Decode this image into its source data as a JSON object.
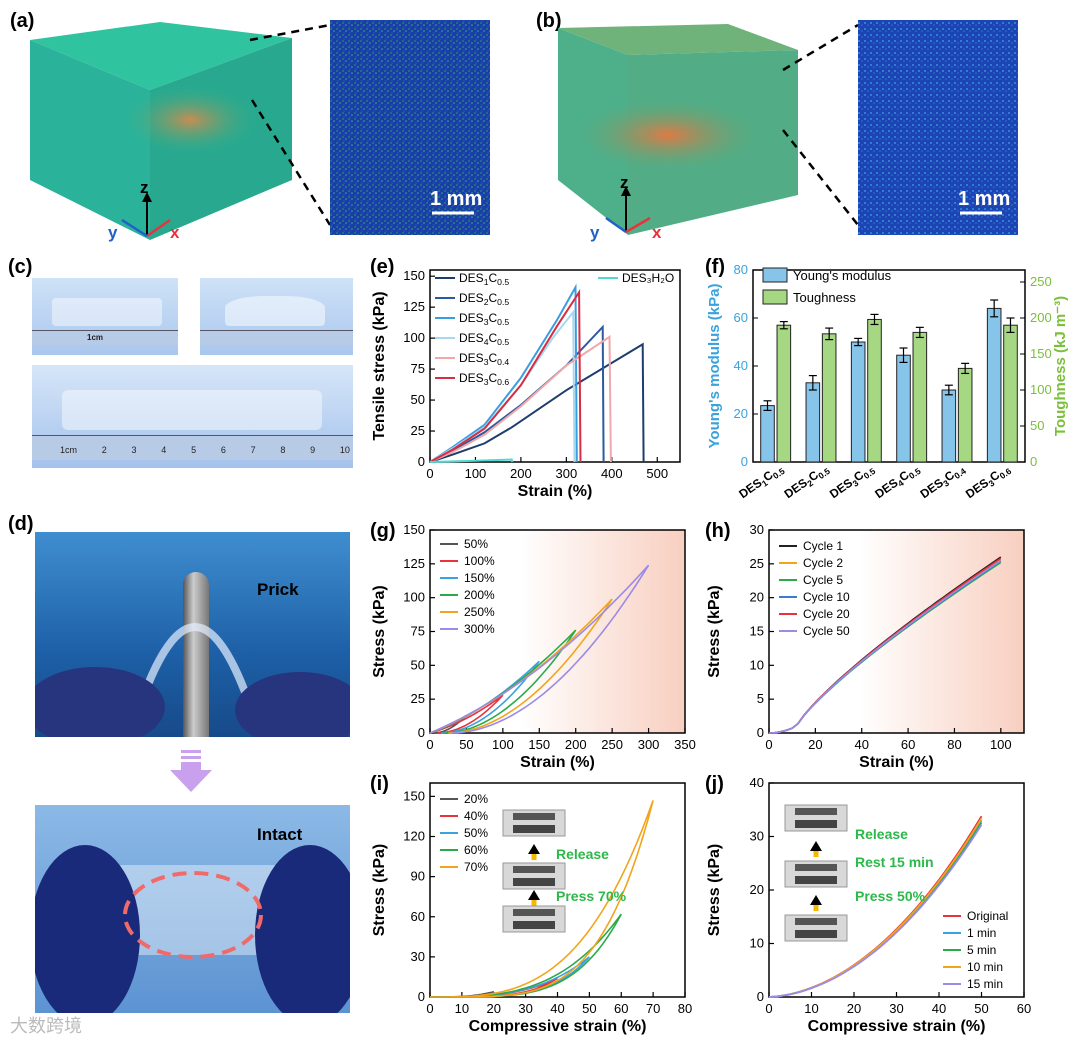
{
  "panels": {
    "a": "(a)",
    "b": "(b)",
    "c": "(c)",
    "d": "(d)",
    "e": "(e)",
    "f": "(f)",
    "g": "(g)",
    "h": "(h)",
    "i": "(i)",
    "j": "(j)"
  },
  "micro": {
    "scale": "1 mm",
    "axis_x": "x",
    "axis_y": "y",
    "axis_z": "z"
  },
  "photo_text": {
    "prick": "Prick",
    "intact": "Intact",
    "ruler_1cm": "1cm",
    "ruler_marks": [
      "1cm",
      "2",
      "3",
      "4",
      "5",
      "6",
      "7",
      "8",
      "9",
      "10"
    ]
  },
  "watermark": "大数跨境",
  "colors": {
    "blue_bar": "#87c4ea",
    "green_bar": "#a6d883",
    "accent_green": "#2db84a",
    "orange_arrow": "#f5b800"
  },
  "chart_data": [
    {
      "id": "e",
      "type": "line",
      "xlabel": "Strain (%)",
      "ylabel": "Tensile stress (kPa)",
      "xlim": [
        0,
        550
      ],
      "ylim": [
        0,
        155
      ],
      "xticks": [
        0,
        100,
        200,
        300,
        400,
        500
      ],
      "yticks": [
        0,
        25,
        50,
        75,
        100,
        125,
        150
      ],
      "legend_extra": "DES₃H₂O",
      "series": [
        {
          "name": "DES₁C₀.₅",
          "label_main": "DES",
          "sub1": "1",
          "mid": "C",
          "sub2": "0.5",
          "color": "#1d3d6e",
          "points": [
            [
              0,
              0
            ],
            [
              50,
              6
            ],
            [
              120,
              15
            ],
            [
              180,
              28
            ],
            [
              300,
              58
            ],
            [
              468,
              95
            ],
            [
              470,
              0
            ]
          ]
        },
        {
          "name": "DES₂C₀.₅",
          "label_main": "DES",
          "sub1": "2",
          "mid": "C",
          "sub2": "0.5",
          "color": "#2c5aa0",
          "points": [
            [
              0,
              0
            ],
            [
              50,
              9
            ],
            [
              120,
              24
            ],
            [
              200,
              46
            ],
            [
              300,
              78
            ],
            [
              380,
              109
            ],
            [
              382,
              0
            ]
          ]
        },
        {
          "name": "DES₃C₀.₅",
          "label_main": "DES",
          "sub1": "3",
          "mid": "C",
          "sub2": "0.5",
          "color": "#3a9de0",
          "points": [
            [
              0,
              0
            ],
            [
              50,
              12
            ],
            [
              120,
              30
            ],
            [
              200,
              68
            ],
            [
              280,
              115
            ],
            [
              320,
              141
            ],
            [
              323,
              0
            ]
          ]
        },
        {
          "name": "DES₄C₀.₅",
          "label_main": "DES",
          "sub1": "4",
          "mid": "C",
          "sub2": "0.5",
          "color": "#a8d8ee",
          "points": [
            [
              0,
              0
            ],
            [
              50,
              11
            ],
            [
              120,
              28
            ],
            [
              200,
              62
            ],
            [
              270,
              100
            ],
            [
              315,
              121
            ],
            [
              318,
              0
            ]
          ]
        },
        {
          "name": "DES₃C₀.₄",
          "label_main": "DES",
          "sub1": "3",
          "mid": "C",
          "sub2": "0.4",
          "color": "#f0a8a8",
          "points": [
            [
              0,
              0
            ],
            [
              50,
              8
            ],
            [
              120,
              22
            ],
            [
              200,
              45
            ],
            [
              300,
              78
            ],
            [
              395,
              101
            ],
            [
              398,
              0
            ]
          ]
        },
        {
          "name": "DES₃C₀.₆",
          "label_main": "DES",
          "sub1": "3",
          "mid": "C",
          "sub2": "0.6",
          "color": "#d62d44",
          "points": [
            [
              0,
              0
            ],
            [
              50,
              10
            ],
            [
              120,
              27
            ],
            [
              200,
              62
            ],
            [
              280,
              110
            ],
            [
              328,
              137
            ],
            [
              331,
              0
            ]
          ]
        },
        {
          "name": "DES₃H₂O",
          "color": "#4fd9d0",
          "points": [
            [
              0,
              0
            ],
            [
              100,
              1
            ],
            [
              180,
              2
            ],
            [
              181,
              0
            ]
          ]
        }
      ]
    },
    {
      "id": "f",
      "type": "bar",
      "ylabel_left": "Young's modulus (kPa)",
      "ylabel_right": "Toughness (kJ m⁻³)",
      "categories": [
        {
          "main": "DES",
          "sub1": "1",
          "mid": "C",
          "sub2": "0.5"
        },
        {
          "main": "DES",
          "sub1": "2",
          "mid": "C",
          "sub2": "0.5"
        },
        {
          "main": "DES",
          "sub1": "3",
          "mid": "C",
          "sub2": "0.5"
        },
        {
          "main": "DES",
          "sub1": "4",
          "mid": "C",
          "sub2": "0.5"
        },
        {
          "main": "DES",
          "sub1": "3",
          "mid": "C",
          "sub2": "0.4"
        },
        {
          "main": "DES",
          "sub1": "3",
          "mid": "C",
          "sub2": "0.6"
        }
      ],
      "ylim_left": [
        0,
        80
      ],
      "ylim_right": [
        0,
        266.67
      ],
      "yticks_left": [
        0,
        20,
        40,
        60,
        80
      ],
      "yticks_right": [
        0,
        50,
        100,
        150,
        200,
        250
      ],
      "series": [
        {
          "name": "Young's modulus",
          "axis": "left",
          "values": [
            23.5,
            33,
            50,
            44.5,
            30,
            64
          ],
          "errors": [
            2,
            3,
            1.5,
            3,
            2,
            3.5
          ]
        },
        {
          "name": "Toughness",
          "axis": "right",
          "values": [
            190,
            178,
            198,
            180,
            130,
            190
          ],
          "errors": [
            5,
            8,
            7,
            7,
            7,
            10
          ]
        }
      ]
    },
    {
      "id": "g",
      "type": "line",
      "xlabel": "Strain (%)",
      "ylabel": "Stress (kPa)",
      "xlim": [
        0,
        350
      ],
      "ylim": [
        0,
        150
      ],
      "xticks": [
        0,
        50,
        100,
        150,
        200,
        250,
        300,
        350
      ],
      "yticks": [
        0,
        25,
        50,
        75,
        100,
        125,
        150
      ],
      "series": [
        {
          "name": "50%",
          "color": "#555555",
          "max_x": 50,
          "max_y": 13
        },
        {
          "name": "100%",
          "color": "#e8323c",
          "max_x": 100,
          "max_y": 28
        },
        {
          "name": "150%",
          "color": "#3aa2dc",
          "max_x": 150,
          "max_y": 53
        },
        {
          "name": "200%",
          "color": "#2caa4a",
          "max_x": 200,
          "max_y": 76
        },
        {
          "name": "250%",
          "color": "#f2a41c",
          "max_x": 250,
          "max_y": 99
        },
        {
          "name": "300%",
          "color": "#9b8ae6",
          "max_x": 300,
          "max_y": 124
        }
      ]
    },
    {
      "id": "h",
      "type": "line",
      "xlabel": "Strain (%)",
      "ylabel": "Stress (kPa)",
      "xlim": [
        0,
        110
      ],
      "ylim": [
        0,
        30
      ],
      "xticks": [
        0,
        20,
        40,
        60,
        80,
        100
      ],
      "yticks": [
        0,
        5,
        10,
        15,
        20,
        25,
        30
      ],
      "series": [
        {
          "name": "Cycle 1",
          "color": "#222222",
          "end": 26
        },
        {
          "name": "Cycle 2",
          "color": "#f2a41c",
          "end": 25.6
        },
        {
          "name": "Cycle 5",
          "color": "#2caa4a",
          "end": 25.2
        },
        {
          "name": "Cycle 10",
          "color": "#3a7cd0",
          "end": 25.4
        },
        {
          "name": "Cycle 20",
          "color": "#e8323c",
          "end": 25.8
        },
        {
          "name": "Cycle 50",
          "color": "#9b8ae6",
          "end": 25.5
        }
      ]
    },
    {
      "id": "i",
      "type": "line",
      "xlabel": "Compressive strain (%)",
      "ylabel": "Stress (kPa)",
      "xlim": [
        0,
        80
      ],
      "ylim": [
        0,
        160
      ],
      "xticks": [
        0,
        10,
        20,
        30,
        40,
        50,
        60,
        70,
        80
      ],
      "yticks": [
        0,
        30,
        60,
        90,
        120,
        150
      ],
      "annot": {
        "release": "Release",
        "press": "Press 70%"
      },
      "series": [
        {
          "name": "20%",
          "color": "#555555",
          "max_x": 20,
          "max_y": 4
        },
        {
          "name": "40%",
          "color": "#e8323c",
          "max_x": 40,
          "max_y": 14
        },
        {
          "name": "50%",
          "color": "#3aa2dc",
          "max_x": 50,
          "max_y": 30
        },
        {
          "name": "60%",
          "color": "#2caa4a",
          "max_x": 60,
          "max_y": 62
        },
        {
          "name": "70%",
          "color": "#f2a41c",
          "max_x": 70,
          "max_y": 147
        }
      ]
    },
    {
      "id": "j",
      "type": "line",
      "xlabel": "Compressive strain (%)",
      "ylabel": "Stress (kPa)",
      "xlim": [
        0,
        60
      ],
      "ylim": [
        0,
        40
      ],
      "xticks": [
        0,
        10,
        20,
        30,
        40,
        50,
        60
      ],
      "yticks": [
        0,
        10,
        20,
        30,
        40
      ],
      "annot": {
        "release": "Release",
        "rest": "Rest 15 min",
        "press": "Press 50%"
      },
      "series": [
        {
          "name": "Original",
          "color": "#e8323c",
          "end": 33.8
        },
        {
          "name": "1 min",
          "color": "#3aa2dc",
          "end": 33.0
        },
        {
          "name": "5 min",
          "color": "#2caa4a",
          "end": 32.6
        },
        {
          "name": "10 min",
          "color": "#f2a41c",
          "end": 33.4
        },
        {
          "name": "15 min",
          "color": "#9b8ae6",
          "end": 32.2
        }
      ]
    }
  ]
}
